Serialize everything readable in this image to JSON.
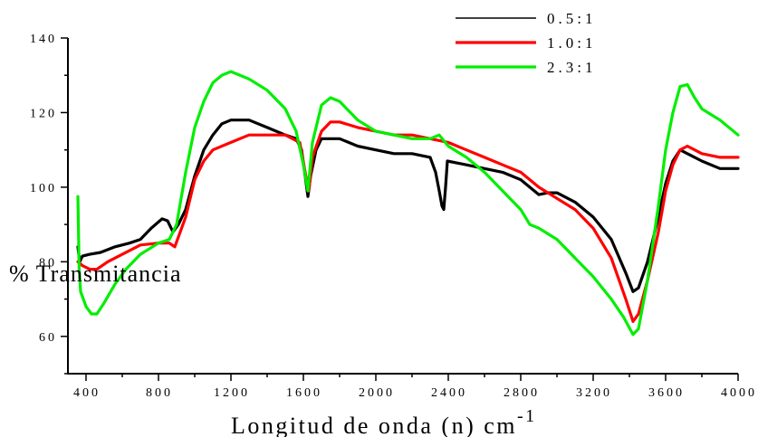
{
  "chart_data": {
    "type": "line",
    "xlabel": "Longitud de onda (n)  cm",
    "xlabel_sup": "-1",
    "ylabel": "% Transmitancia",
    "xlim": [
      300,
      4000
    ],
    "ylim": [
      50,
      140
    ],
    "xticks": [
      400,
      800,
      1200,
      1600,
      2000,
      2400,
      2800,
      3200,
      3600,
      4000
    ],
    "yticks": [
      60,
      80,
      100,
      120,
      140
    ],
    "x_tick_labels": [
      "400",
      "800",
      "1200",
      "1600",
      "2000",
      "2400",
      "2800",
      "3200",
      "3600",
      "4000"
    ],
    "y_tick_labels": [
      "60",
      "80",
      "100",
      "120",
      "140"
    ],
    "legend_position": "top-right",
    "series": [
      {
        "name": "0.5:1",
        "color": "#000000",
        "points": [
          [
            355,
            84
          ],
          [
            365,
            80
          ],
          [
            380,
            81.5
          ],
          [
            420,
            82
          ],
          [
            480,
            82.5
          ],
          [
            560,
            84
          ],
          [
            640,
            85
          ],
          [
            700,
            86
          ],
          [
            760,
            89
          ],
          [
            820,
            91.5
          ],
          [
            850,
            91
          ],
          [
            880,
            88
          ],
          [
            910,
            90
          ],
          [
            950,
            94
          ],
          [
            1000,
            103
          ],
          [
            1050,
            110
          ],
          [
            1100,
            114
          ],
          [
            1150,
            117
          ],
          [
            1200,
            118
          ],
          [
            1300,
            118
          ],
          [
            1400,
            116
          ],
          [
            1500,
            114
          ],
          [
            1560,
            113
          ],
          [
            1590,
            110
          ],
          [
            1610,
            103
          ],
          [
            1625,
            97.5
          ],
          [
            1640,
            103
          ],
          [
            1670,
            110
          ],
          [
            1700,
            113
          ],
          [
            1800,
            113
          ],
          [
            1900,
            111
          ],
          [
            2000,
            110
          ],
          [
            2100,
            109
          ],
          [
            2200,
            109
          ],
          [
            2300,
            108
          ],
          [
            2330,
            104
          ],
          [
            2350,
            99
          ],
          [
            2365,
            95
          ],
          [
            2375,
            94
          ],
          [
            2385,
            100
          ],
          [
            2395,
            107
          ],
          [
            2500,
            106
          ],
          [
            2700,
            104
          ],
          [
            2800,
            102
          ],
          [
            2900,
            98
          ],
          [
            2950,
            98.5
          ],
          [
            3000,
            98.5
          ],
          [
            3100,
            96
          ],
          [
            3200,
            92
          ],
          [
            3300,
            86
          ],
          [
            3380,
            77
          ],
          [
            3420,
            72
          ],
          [
            3450,
            73
          ],
          [
            3500,
            80
          ],
          [
            3560,
            92
          ],
          [
            3600,
            101
          ],
          [
            3640,
            107
          ],
          [
            3680,
            110
          ],
          [
            3720,
            109
          ],
          [
            3800,
            107
          ],
          [
            3900,
            105
          ],
          [
            4000,
            105
          ]
        ]
      },
      {
        "name": "1.0:1",
        "color": "#ff0000",
        "points": [
          [
            355,
            80
          ],
          [
            380,
            79
          ],
          [
            420,
            78
          ],
          [
            460,
            78
          ],
          [
            520,
            80
          ],
          [
            600,
            82
          ],
          [
            700,
            84.5
          ],
          [
            800,
            85
          ],
          [
            860,
            85
          ],
          [
            890,
            84
          ],
          [
            920,
            88
          ],
          [
            950,
            92
          ],
          [
            1000,
            102
          ],
          [
            1050,
            107
          ],
          [
            1100,
            110
          ],
          [
            1200,
            112
          ],
          [
            1300,
            114
          ],
          [
            1400,
            114
          ],
          [
            1500,
            114
          ],
          [
            1580,
            112
          ],
          [
            1610,
            104
          ],
          [
            1630,
            99
          ],
          [
            1650,
            108
          ],
          [
            1700,
            115
          ],
          [
            1750,
            117.5
          ],
          [
            1800,
            117.5
          ],
          [
            1900,
            116
          ],
          [
            2000,
            115
          ],
          [
            2100,
            114
          ],
          [
            2200,
            114
          ],
          [
            2300,
            113
          ],
          [
            2400,
            112
          ],
          [
            2500,
            110
          ],
          [
            2600,
            108
          ],
          [
            2700,
            106
          ],
          [
            2800,
            104
          ],
          [
            2900,
            100
          ],
          [
            3000,
            97
          ],
          [
            3100,
            94
          ],
          [
            3200,
            89
          ],
          [
            3300,
            81
          ],
          [
            3380,
            70
          ],
          [
            3420,
            64
          ],
          [
            3450,
            66
          ],
          [
            3500,
            75
          ],
          [
            3560,
            88
          ],
          [
            3600,
            99
          ],
          [
            3640,
            106
          ],
          [
            3680,
            110
          ],
          [
            3720,
            111
          ],
          [
            3800,
            109
          ],
          [
            3900,
            108
          ],
          [
            4000,
            108
          ]
        ]
      },
      {
        "name": "2.3:1",
        "color": "#00ee00",
        "points": [
          [
            355,
            97.5
          ],
          [
            362,
            78
          ],
          [
            370,
            72
          ],
          [
            400,
            68
          ],
          [
            430,
            66
          ],
          [
            460,
            66
          ],
          [
            500,
            69
          ],
          [
            560,
            74
          ],
          [
            620,
            78
          ],
          [
            700,
            82
          ],
          [
            800,
            85
          ],
          [
            860,
            86
          ],
          [
            900,
            90
          ],
          [
            950,
            104
          ],
          [
            1000,
            116
          ],
          [
            1050,
            123
          ],
          [
            1100,
            128
          ],
          [
            1150,
            130
          ],
          [
            1200,
            131
          ],
          [
            1300,
            129
          ],
          [
            1400,
            126
          ],
          [
            1500,
            121
          ],
          [
            1560,
            115
          ],
          [
            1600,
            106
          ],
          [
            1625,
            99
          ],
          [
            1650,
            112
          ],
          [
            1700,
            122
          ],
          [
            1750,
            124
          ],
          [
            1800,
            123
          ],
          [
            1900,
            118
          ],
          [
            2000,
            115
          ],
          [
            2100,
            114
          ],
          [
            2200,
            113
          ],
          [
            2300,
            113
          ],
          [
            2350,
            114
          ],
          [
            2400,
            111
          ],
          [
            2500,
            108
          ],
          [
            2600,
            104
          ],
          [
            2700,
            99
          ],
          [
            2800,
            94
          ],
          [
            2850,
            90
          ],
          [
            2900,
            89
          ],
          [
            3000,
            86
          ],
          [
            3100,
            81
          ],
          [
            3200,
            76
          ],
          [
            3300,
            70
          ],
          [
            3370,
            65
          ],
          [
            3420,
            60.5
          ],
          [
            3450,
            62
          ],
          [
            3500,
            75
          ],
          [
            3560,
            95
          ],
          [
            3600,
            110
          ],
          [
            3640,
            120
          ],
          [
            3680,
            127
          ],
          [
            3720,
            127.5
          ],
          [
            3760,
            124
          ],
          [
            3800,
            121
          ],
          [
            3900,
            118
          ],
          [
            4000,
            114
          ]
        ]
      }
    ]
  }
}
